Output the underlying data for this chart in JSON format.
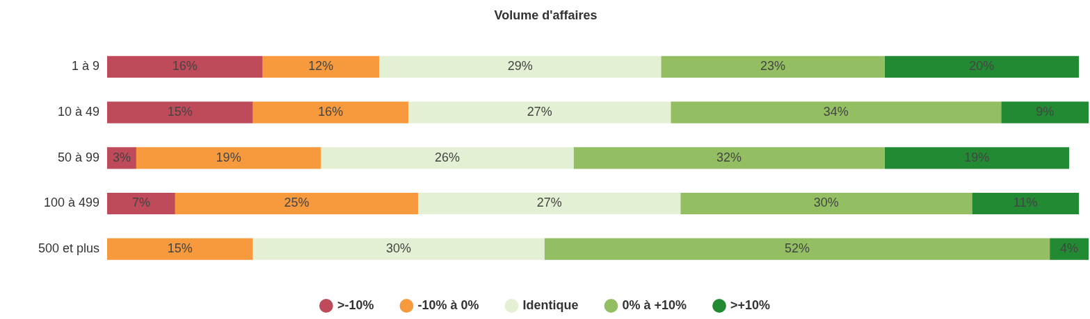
{
  "chart_data": {
    "type": "bar",
    "title": "Volume d'affaires",
    "orientation": "horizontal",
    "stacked": true,
    "legend": "bottom",
    "categories": [
      "1 à 9",
      "10 à 49",
      "50 à 99",
      "100 à 499",
      "500 et plus"
    ],
    "series": [
      {
        "name": ">-10%",
        "color": "#be4a5a",
        "values": [
          16,
          15,
          3,
          7,
          null
        ],
        "value_labels": [
          "16%",
          "15%",
          "3%",
          "7%",
          null
        ]
      },
      {
        "name": "-10% à 0%",
        "color": "#f79a3e",
        "values": [
          12,
          16,
          19,
          25,
          15
        ],
        "value_labels": [
          "12%",
          "16%",
          "19%",
          "25%",
          "15%"
        ]
      },
      {
        "name": "Identique",
        "color": "#e3f0d3",
        "values": [
          29,
          27,
          26,
          27,
          30
        ],
        "value_labels": [
          "29%",
          "27%",
          "26%",
          "27%",
          "30%"
        ]
      },
      {
        "name": "0% à +10%",
        "color": "#93bf62",
        "values": [
          23,
          34,
          32,
          30,
          52
        ],
        "value_labels": [
          "23%",
          "34%",
          "32%",
          "30%",
          "52%"
        ]
      },
      {
        "name": ">+10%",
        "color": "#238a34",
        "values": [
          20,
          9,
          19,
          11,
          4
        ],
        "value_labels": [
          "20%",
          "9%",
          "19%",
          "11%",
          "4%"
        ]
      }
    ]
  }
}
